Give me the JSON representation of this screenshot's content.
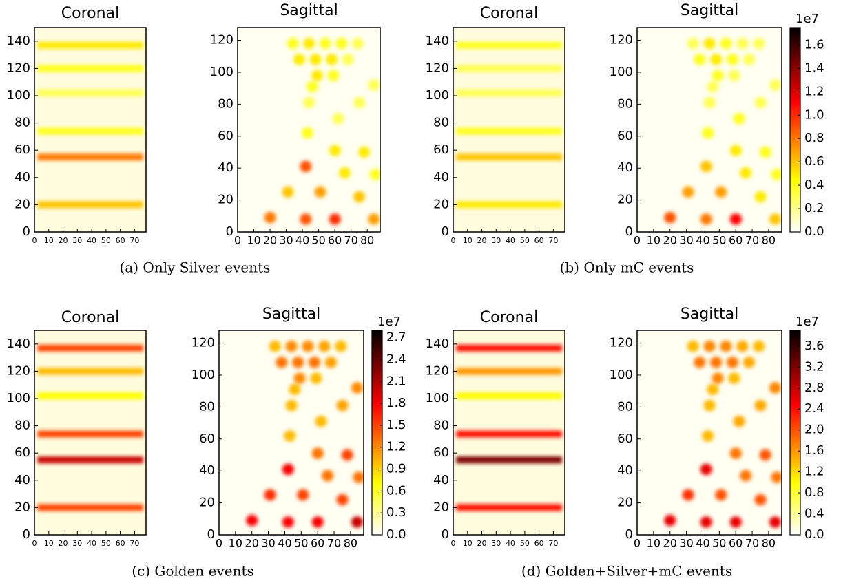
{
  "captions": [
    "(a) Only Silver events",
    "(b) Only mC events",
    "(c) Golden events",
    "(d) Golden+Silver+mC events"
  ],
  "chart_data": [
    {
      "type": "coronal",
      "title": "Coronal",
      "xlim": [
        0,
        78
      ],
      "ylim": [
        0,
        150
      ],
      "xticks": [
        0,
        10,
        20,
        30,
        40,
        50,
        60,
        70
      ],
      "yticks": [
        0,
        20,
        40,
        60,
        80,
        100,
        120,
        140
      ],
      "colormap": "hot_r",
      "y": [
        20,
        55,
        74,
        102,
        120,
        137
      ],
      "values": [
        0.6,
        0.8,
        0.4,
        0.3,
        0.4,
        0.5
      ]
    },
    {
      "type": "sagittal",
      "title": "Sagittal",
      "xlim": [
        0,
        88
      ],
      "ylim": [
        0,
        128
      ],
      "xticks": [
        0,
        10,
        20,
        30,
        40,
        50,
        60,
        70,
        80
      ],
      "yticks": [
        0,
        20,
        40,
        60,
        80,
        100,
        120
      ],
      "colormap": "hot_r",
      "x": [
        20,
        42,
        60,
        84,
        31,
        51,
        75,
        42,
        66,
        85,
        60,
        78,
        43,
        62,
        75,
        84,
        44,
        46,
        38,
        48,
        58,
        68,
        34,
        44,
        54,
        64,
        74,
        49,
        59
      ],
      "y": [
        9,
        8,
        8,
        8,
        25,
        25,
        22,
        41,
        37,
        36,
        51,
        50,
        62,
        71,
        81,
        92,
        81,
        91,
        108,
        108,
        108,
        108,
        118,
        118,
        118,
        118,
        118,
        98,
        98
      ],
      "values": [
        0.8,
        0.9,
        1.0,
        0.7,
        0.6,
        0.7,
        0.6,
        0.9,
        0.5,
        0.4,
        0.5,
        0.5,
        0.4,
        0.3,
        0.3,
        0.3,
        0.3,
        0.4,
        0.5,
        0.5,
        0.5,
        0.3,
        0.4,
        0.5,
        0.4,
        0.4,
        0.3,
        0.5,
        0.4
      ]
    },
    {
      "type": "coronal",
      "title": "Coronal",
      "xlim": [
        0,
        78
      ],
      "ylim": [
        0,
        150
      ],
      "xticks": [
        0,
        10,
        20,
        30,
        40,
        50,
        60,
        70
      ],
      "yticks": [
        0,
        20,
        40,
        60,
        80,
        100,
        120,
        140
      ],
      "colormap": "hot_r",
      "y": [
        20,
        55,
        74,
        102,
        120,
        137
      ],
      "values": [
        0.5,
        0.6,
        0.4,
        0.3,
        0.3,
        0.4
      ]
    },
    {
      "type": "sagittal",
      "title": "Sagittal",
      "xlim": [
        0,
        88
      ],
      "ylim": [
        0,
        128
      ],
      "xticks": [
        0,
        10,
        20,
        30,
        40,
        50,
        60,
        70,
        80
      ],
      "yticks": [
        0,
        20,
        40,
        60,
        80,
        100,
        120
      ],
      "colormap": "hot_r",
      "x": [
        20,
        42,
        60,
        84,
        31,
        51,
        75,
        42,
        66,
        85,
        60,
        78,
        43,
        62,
        75,
        84,
        44,
        46,
        38,
        48,
        58,
        68,
        34,
        44,
        54,
        64,
        74,
        49,
        59
      ],
      "y": [
        9,
        8,
        8,
        8,
        25,
        25,
        22,
        41,
        37,
        36,
        51,
        50,
        62,
        71,
        81,
        92,
        81,
        91,
        108,
        108,
        108,
        108,
        118,
        118,
        118,
        118,
        118,
        98,
        98
      ],
      "values": [
        0.9,
        0.8,
        1.1,
        0.6,
        0.7,
        0.7,
        0.5,
        0.6,
        0.5,
        0.4,
        0.5,
        0.4,
        0.4,
        0.4,
        0.3,
        0.3,
        0.3,
        0.3,
        0.4,
        0.5,
        0.4,
        0.3,
        0.3,
        0.5,
        0.4,
        0.3,
        0.3,
        0.4,
        0.3
      ],
      "colorbar": {
        "label": "1e7",
        "lim": [
          0,
          1.75
        ],
        "ticks": [
          {
            "value": 0,
            "label": "0.0"
          },
          0.2,
          0.4,
          0.6,
          0.8,
          {
            "value": 1,
            "label": "1.0"
          },
          1.2,
          1.4,
          1.6
        ]
      }
    },
    {
      "type": "coronal",
      "title": "Coronal",
      "xlim": [
        0,
        78
      ],
      "ylim": [
        0,
        150
      ],
      "xticks": [
        0,
        10,
        20,
        30,
        40,
        50,
        60,
        70
      ],
      "yticks": [
        0,
        20,
        40,
        60,
        80,
        100,
        120,
        140
      ],
      "colormap": "hot_r",
      "y": [
        20,
        55,
        74,
        102,
        120,
        137
      ],
      "values": [
        1.5,
        2.0,
        1.5,
        0.7,
        1.0,
        1.5
      ]
    },
    {
      "type": "sagittal",
      "title": "Sagittal",
      "xlim": [
        0,
        88
      ],
      "ylim": [
        0,
        128
      ],
      "xticks": [
        0,
        10,
        20,
        30,
        40,
        50,
        60,
        70,
        80
      ],
      "yticks": [
        0,
        20,
        40,
        60,
        80,
        100,
        120
      ],
      "colormap": "hot_r",
      "x": [
        20,
        42,
        60,
        84,
        31,
        51,
        75,
        42,
        66,
        85,
        60,
        78,
        43,
        62,
        75,
        84,
        44,
        46,
        38,
        48,
        58,
        68,
        34,
        44,
        54,
        64,
        74,
        49,
        59
      ],
      "y": [
        9,
        8,
        8,
        8,
        25,
        25,
        22,
        41,
        37,
        36,
        51,
        50,
        62,
        71,
        81,
        92,
        81,
        91,
        108,
        108,
        108,
        108,
        118,
        118,
        118,
        118,
        118,
        98,
        98
      ],
      "values": [
        1.8,
        1.8,
        1.8,
        2.0,
        1.6,
        1.5,
        1.5,
        1.8,
        1.3,
        1.3,
        1.3,
        1.5,
        1.0,
        1.0,
        1.1,
        1.2,
        1.0,
        1.0,
        1.3,
        1.3,
        1.3,
        1.1,
        1.0,
        1.2,
        1.2,
        1.1,
        1.0,
        1.2,
        1.0
      ],
      "colorbar": {
        "label": "1e7",
        "lim": [
          0,
          2.8
        ],
        "ticks": [
          {
            "value": 0,
            "label": "0.0"
          },
          0.3,
          0.6,
          0.9,
          1.2,
          1.5,
          1.8,
          2.1,
          2.4,
          2.7
        ]
      }
    },
    {
      "type": "coronal",
      "title": "Coronal",
      "xlim": [
        0,
        78
      ],
      "ylim": [
        0,
        150
      ],
      "xticks": [
        0,
        10,
        20,
        30,
        40,
        50,
        60,
        70
      ],
      "yticks": [
        0,
        20,
        40,
        60,
        80,
        100,
        120,
        140
      ],
      "colormap": "hot_r",
      "y": [
        20,
        55,
        74,
        102,
        120,
        137
      ],
      "values": [
        2.4,
        3.2,
        2.4,
        1.0,
        1.6,
        2.4
      ]
    },
    {
      "type": "sagittal",
      "title": "Sagittal",
      "xlim": [
        0,
        88
      ],
      "ylim": [
        0,
        128
      ],
      "xticks": [
        0,
        10,
        20,
        30,
        40,
        50,
        60,
        70,
        80
      ],
      "yticks": [
        0,
        20,
        40,
        60,
        80,
        100,
        120
      ],
      "colormap": "hot_r",
      "x": [
        20,
        42,
        60,
        84,
        31,
        51,
        75,
        42,
        66,
        85,
        60,
        78,
        43,
        62,
        75,
        84,
        44,
        46,
        38,
        48,
        58,
        68,
        34,
        44,
        54,
        64,
        74,
        49,
        59
      ],
      "y": [
        9,
        8,
        8,
        8,
        25,
        25,
        22,
        41,
        37,
        36,
        51,
        50,
        62,
        71,
        81,
        92,
        81,
        91,
        108,
        108,
        108,
        108,
        118,
        118,
        118,
        118,
        118,
        98,
        98
      ],
      "values": [
        2.6,
        2.6,
        2.6,
        2.6,
        2.2,
        2.0,
        2.0,
        2.6,
        1.8,
        1.8,
        1.8,
        2.0,
        1.4,
        1.5,
        1.5,
        1.7,
        1.4,
        1.4,
        1.8,
        1.8,
        1.8,
        1.5,
        1.4,
        1.7,
        1.7,
        1.5,
        1.4,
        1.7,
        1.4
      ],
      "colorbar": {
        "label": "1e7",
        "lim": [
          0,
          3.9
        ],
        "ticks": [
          {
            "value": 0,
            "label": "0.0"
          },
          0.4,
          0.8,
          1.2,
          1.6,
          {
            "value": 2,
            "label": "2.0"
          },
          2.4,
          2.8,
          3.2,
          3.6
        ]
      }
    }
  ]
}
